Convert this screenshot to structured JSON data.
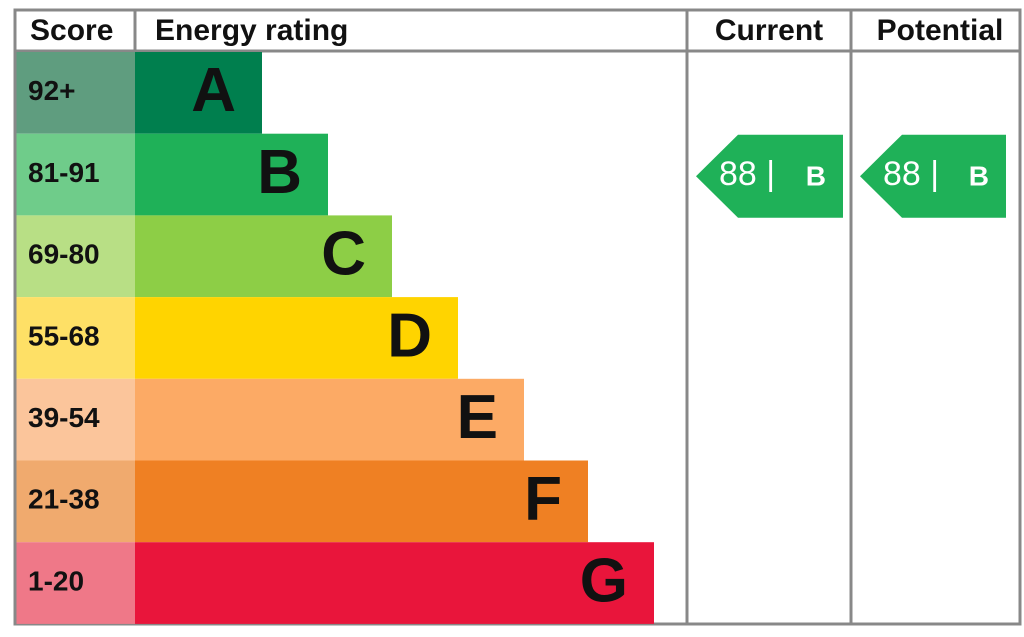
{
  "header": {
    "score": "Score",
    "energy_rating": "Energy rating",
    "current": "Current",
    "potential": "Potential"
  },
  "bands": [
    {
      "score": "92+",
      "letter": "A",
      "score_color": "#5f9d7f",
      "color": "#007f4e"
    },
    {
      "score": "81-91",
      "letter": "B",
      "score_color": "#6fcc8a",
      "color": "#1fb158"
    },
    {
      "score": "69-80",
      "letter": "C",
      "score_color": "#b8df85",
      "color": "#8dce46"
    },
    {
      "score": "55-68",
      "letter": "D",
      "score_color": "#fee066",
      "color": "#ffd400"
    },
    {
      "score": "39-54",
      "letter": "E",
      "score_color": "#fbc59b",
      "color": "#fcaa65"
    },
    {
      "score": "21-38",
      "letter": "F",
      "score_color": "#f0aa6e",
      "color": "#ef8023"
    },
    {
      "score": "1-20",
      "letter": "G",
      "score_color": "#ef7888",
      "color": "#e9153b"
    }
  ],
  "current": {
    "label": "88 |",
    "rating": "B"
  },
  "potential": {
    "label": "88 |",
    "rating": "B"
  }
}
